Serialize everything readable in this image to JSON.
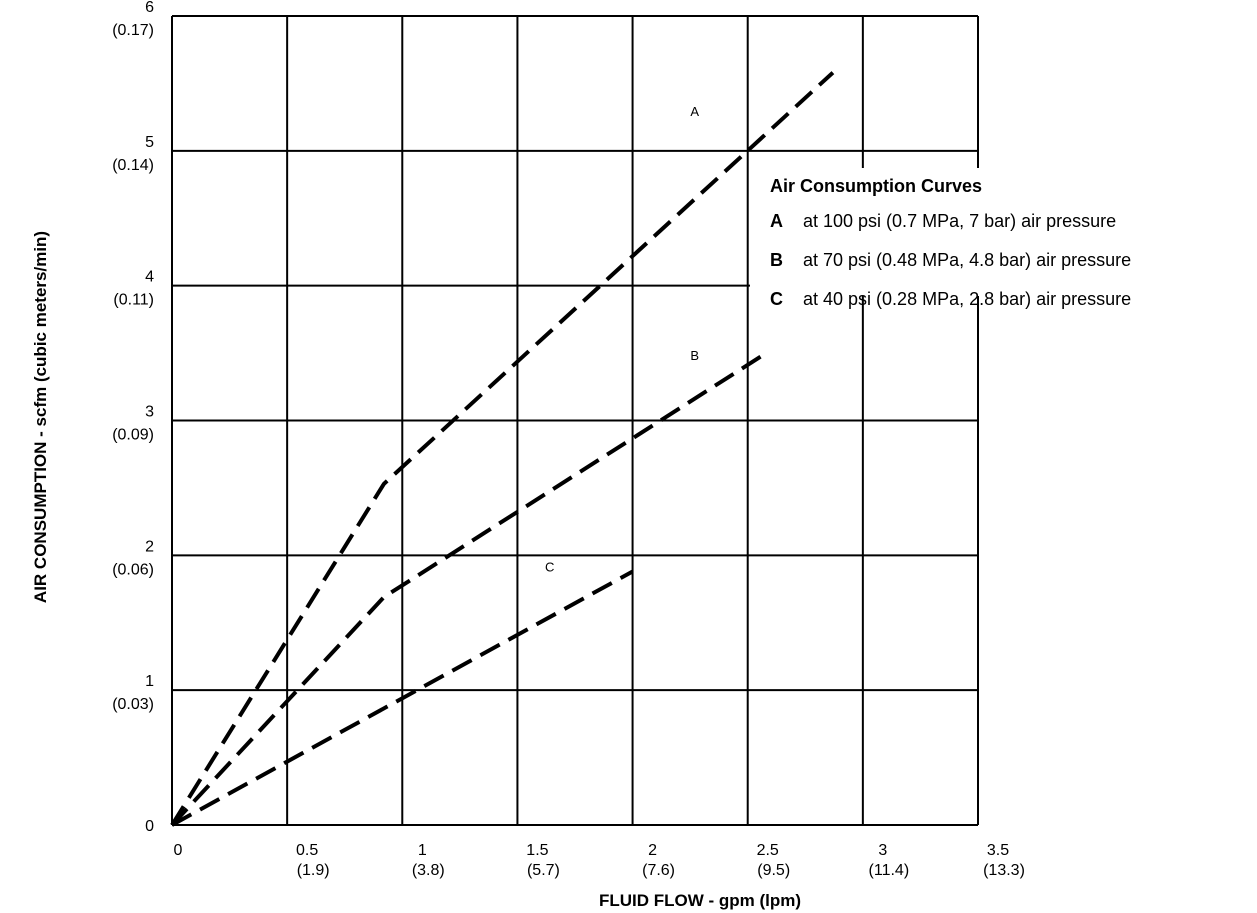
{
  "chart_data": {
    "type": "line",
    "xlabel": "FLUID FLOW - gpm (lpm)",
    "ylabel": "AIR CONSUMPTION - scfm (cubic meters/min)",
    "xlim": [
      0,
      3.5
    ],
    "ylim": [
      0,
      6
    ],
    "grid": true,
    "legend_placement": "right",
    "x_ticks": [
      {
        "value": 0,
        "label": "0",
        "sub": ""
      },
      {
        "value": 0.5,
        "label": "0.5",
        "sub": "(1.9)"
      },
      {
        "value": 1,
        "label": "1",
        "sub": "(3.8)"
      },
      {
        "value": 1.5,
        "label": "1.5",
        "sub": "(5.7)"
      },
      {
        "value": 2,
        "label": "2",
        "sub": "(7.6)"
      },
      {
        "value": 2.5,
        "label": "2.5",
        "sub": "(9.5)"
      },
      {
        "value": 3,
        "label": "3",
        "sub": "(11.4)"
      },
      {
        "value": 3.5,
        "label": "3.5",
        "sub": "(13.3)"
      }
    ],
    "y_ticks": [
      {
        "value": 0,
        "label": "0",
        "sub": ""
      },
      {
        "value": 1,
        "label": "1",
        "sub": "(0.03)"
      },
      {
        "value": 2,
        "label": "2",
        "sub": "(0.06)"
      },
      {
        "value": 3,
        "label": "3",
        "sub": "(0.09)"
      },
      {
        "value": 4,
        "label": "4",
        "sub": "(0.11)"
      },
      {
        "value": 5,
        "label": "5",
        "sub": "(0.14)"
      },
      {
        "value": 6,
        "label": "6",
        "sub": "(0.17)"
      }
    ],
    "series": [
      {
        "name": "A",
        "label_at": [
          2.27,
          5.26
        ],
        "points": [
          [
            0,
            0
          ],
          [
            0.92,
            2.53
          ],
          [
            2.87,
            5.58
          ]
        ]
      },
      {
        "name": "B",
        "label_at": [
          2.27,
          3.45
        ],
        "points": [
          [
            0,
            0
          ],
          [
            0.92,
            1.69
          ],
          [
            2.58,
            3.5
          ]
        ]
      },
      {
        "name": "C",
        "label_at": [
          1.64,
          1.88
        ],
        "points": [
          [
            0,
            0
          ],
          [
            2.0,
            1.88
          ]
        ]
      }
    ],
    "legend": {
      "title": "Air Consumption Curves",
      "entries": [
        {
          "key": "A",
          "text": "at 100 psi (0.7 MPa, 7 bar) air pressure"
        },
        {
          "key": "B",
          "text": "at 70 psi (0.48 MPa, 4.8 bar) air pressure"
        },
        {
          "key": "C",
          "text": "at 40 psi (0.28 MPa, 2.8 bar) air pressure"
        }
      ]
    }
  }
}
